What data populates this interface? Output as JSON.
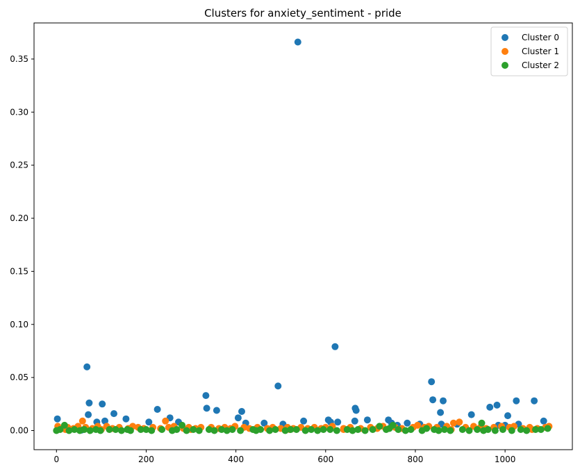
{
  "chart_data": {
    "type": "scatter",
    "title": "Clusters for anxiety_sentiment - pride",
    "xlabel": "",
    "ylabel": "",
    "xlim": [
      -50,
      1150
    ],
    "ylim": [
      -0.018,
      0.384
    ],
    "x_ticks": [
      0,
      200,
      400,
      600,
      800,
      1000
    ],
    "x_tick_labels": [
      "0",
      "200",
      "400",
      "600",
      "800",
      "1000"
    ],
    "y_ticks": [
      0.0,
      0.05,
      0.1,
      0.15,
      0.2,
      0.25,
      0.3,
      0.35
    ],
    "y_tick_labels": [
      "0.00",
      "0.05",
      "0.10",
      "0.15",
      "0.20",
      "0.25",
      "0.30",
      "0.35"
    ],
    "grid": false,
    "legend_position": "top-right",
    "series": [
      {
        "name": "Cluster 0",
        "color": "#1f77b4",
        "points": [
          [
            2,
            0.011
          ],
          [
            56,
            0.0005
          ],
          [
            68,
            0.06
          ],
          [
            71,
            0.015
          ],
          [
            73,
            0.026
          ],
          [
            90,
            0.008
          ],
          [
            102,
            0.025
          ],
          [
            108,
            0.009
          ],
          [
            128,
            0.016
          ],
          [
            155,
            0.011
          ],
          [
            206,
            0.008
          ],
          [
            225,
            0.02
          ],
          [
            253,
            0.012
          ],
          [
            272,
            0.008
          ],
          [
            333,
            0.033
          ],
          [
            335,
            0.021
          ],
          [
            357,
            0.019
          ],
          [
            405,
            0.012
          ],
          [
            413,
            0.018
          ],
          [
            422,
            0.007
          ],
          [
            463,
            0.007
          ],
          [
            494,
            0.042
          ],
          [
            505,
            0.006
          ],
          [
            538,
            0.366
          ],
          [
            551,
            0.009
          ],
          [
            606,
            0.01
          ],
          [
            611,
            0.008
          ],
          [
            621,
            0.079
          ],
          [
            627,
            0.008
          ],
          [
            666,
            0.021
          ],
          [
            668,
            0.019
          ],
          [
            665,
            0.009
          ],
          [
            693,
            0.01
          ],
          [
            740,
            0.01
          ],
          [
            747,
            0.007
          ],
          [
            782,
            0.007
          ],
          [
            810,
            0.006
          ],
          [
            836,
            0.046
          ],
          [
            839,
            0.029
          ],
          [
            856,
            0.017
          ],
          [
            858,
            0.006
          ],
          [
            862,
            0.028
          ],
          [
            893,
            0.006
          ],
          [
            925,
            0.015
          ],
          [
            966,
            0.022
          ],
          [
            982,
            0.024
          ],
          [
            985,
            0.005
          ],
          [
            1006,
            0.014
          ],
          [
            1025,
            0.028
          ],
          [
            1030,
            0.006
          ],
          [
            1065,
            0.028
          ],
          [
            1086,
            0.009
          ],
          [
            1000,
            0.005
          ],
          [
            760,
            0.005
          ]
        ]
      },
      {
        "name": "Cluster 1",
        "color": "#ff7f0e",
        "points": [
          [
            3,
            0.004
          ],
          [
            12,
            0.002
          ],
          [
            25,
            0.003
          ],
          [
            38,
            0.002
          ],
          [
            48,
            0.004
          ],
          [
            58,
            0.009
          ],
          [
            65,
            0.003
          ],
          [
            80,
            0.002
          ],
          [
            92,
            0.004
          ],
          [
            112,
            0.004
          ],
          [
            125,
            0.002
          ],
          [
            140,
            0.003
          ],
          [
            160,
            0.002
          ],
          [
            170,
            0.004
          ],
          [
            182,
            0.003
          ],
          [
            195,
            0.002
          ],
          [
            215,
            0.003
          ],
          [
            232,
            0.002
          ],
          [
            243,
            0.009
          ],
          [
            250,
            0.003
          ],
          [
            262,
            0.004
          ],
          [
            283,
            0.002
          ],
          [
            295,
            0.003
          ],
          [
            310,
            0.002
          ],
          [
            322,
            0.003
          ],
          [
            345,
            0.003
          ],
          [
            362,
            0.002
          ],
          [
            375,
            0.003
          ],
          [
            388,
            0.002
          ],
          [
            398,
            0.004
          ],
          [
            418,
            0.003
          ],
          [
            430,
            0.002
          ],
          [
            448,
            0.003
          ],
          [
            470,
            0.002
          ],
          [
            482,
            0.003
          ],
          [
            500,
            0.002
          ],
          [
            515,
            0.003
          ],
          [
            528,
            0.002
          ],
          [
            545,
            0.003
          ],
          [
            560,
            0.002
          ],
          [
            575,
            0.003
          ],
          [
            590,
            0.002
          ],
          [
            600,
            0.003
          ],
          [
            615,
            0.004
          ],
          [
            640,
            0.002
          ],
          [
            655,
            0.003
          ],
          [
            678,
            0.002
          ],
          [
            700,
            0.003
          ],
          [
            715,
            0.002
          ],
          [
            728,
            0.004
          ],
          [
            755,
            0.003
          ],
          [
            770,
            0.002
          ],
          [
            795,
            0.003
          ],
          [
            805,
            0.005
          ],
          [
            820,
            0.003
          ],
          [
            830,
            0.004
          ],
          [
            848,
            0.003
          ],
          [
            870,
            0.004
          ],
          [
            885,
            0.007
          ],
          [
            898,
            0.008
          ],
          [
            912,
            0.003
          ],
          [
            930,
            0.004
          ],
          [
            945,
            0.003
          ],
          [
            958,
            0.002
          ],
          [
            975,
            0.003
          ],
          [
            992,
            0.004
          ],
          [
            1010,
            0.003
          ],
          [
            1020,
            0.004
          ],
          [
            1040,
            0.002
          ],
          [
            1055,
            0.003
          ],
          [
            1072,
            0.002
          ],
          [
            1090,
            0.003
          ],
          [
            1098,
            0.004
          ],
          [
            20,
            0.001
          ],
          [
            100,
            0.001
          ],
          [
            300,
            0.001
          ],
          [
            520,
            0.001
          ],
          [
            640,
            0.001
          ],
          [
            880,
            0.001
          ],
          [
            1060,
            0.001
          ]
        ]
      },
      {
        "name": "Cluster 2",
        "color": "#2ca02c",
        "points": [
          [
            0,
            0.0
          ],
          [
            8,
            0.001
          ],
          [
            18,
            0.005
          ],
          [
            28,
            0.0
          ],
          [
            40,
            0.001
          ],
          [
            52,
            0.0
          ],
          [
            62,
            0.001
          ],
          [
            75,
            0.0
          ],
          [
            88,
            0.001
          ],
          [
            98,
            0.0
          ],
          [
            118,
            0.001
          ],
          [
            132,
            0.001
          ],
          [
            145,
            0.0
          ],
          [
            158,
            0.001
          ],
          [
            165,
            0.0
          ],
          [
            188,
            0.001
          ],
          [
            200,
            0.001
          ],
          [
            212,
            0.0
          ],
          [
            235,
            0.001
          ],
          [
            258,
            0.0
          ],
          [
            268,
            0.001
          ],
          [
            280,
            0.005
          ],
          [
            290,
            0.0
          ],
          [
            305,
            0.001
          ],
          [
            318,
            0.0
          ],
          [
            340,
            0.001
          ],
          [
            352,
            0.0
          ],
          [
            368,
            0.001
          ],
          [
            380,
            0.0
          ],
          [
            392,
            0.001
          ],
          [
            410,
            0.0
          ],
          [
            438,
            0.001
          ],
          [
            445,
            0.0
          ],
          [
            455,
            0.001
          ],
          [
            475,
            0.0
          ],
          [
            488,
            0.001
          ],
          [
            510,
            0.0
          ],
          [
            522,
            0.001
          ],
          [
            535,
            0.001
          ],
          [
            555,
            0.0
          ],
          [
            568,
            0.001
          ],
          [
            582,
            0.0
          ],
          [
            595,
            0.001
          ],
          [
            610,
            0.001
          ],
          [
            625,
            0.0
          ],
          [
            648,
            0.001
          ],
          [
            660,
            0.0
          ],
          [
            672,
            0.001
          ],
          [
            688,
            0.0
          ],
          [
            705,
            0.001
          ],
          [
            720,
            0.004
          ],
          [
            735,
            0.001
          ],
          [
            742,
            0.002
          ],
          [
            750,
            0.005
          ],
          [
            762,
            0.001
          ],
          [
            778,
            0.0
          ],
          [
            790,
            0.001
          ],
          [
            815,
            0.0
          ],
          [
            825,
            0.002
          ],
          [
            842,
            0.001
          ],
          [
            852,
            0.0
          ],
          [
            865,
            0.001
          ],
          [
            878,
            0.0
          ],
          [
            905,
            0.001
          ],
          [
            920,
            0.0
          ],
          [
            938,
            0.001
          ],
          [
            948,
            0.007
          ],
          [
            952,
            0.0
          ],
          [
            962,
            0.001
          ],
          [
            978,
            0.0
          ],
          [
            995,
            0.001
          ],
          [
            1015,
            0.0
          ],
          [
            1035,
            0.001
          ],
          [
            1048,
            0.0
          ],
          [
            1068,
            0.001
          ],
          [
            1080,
            0.001
          ],
          [
            1095,
            0.002
          ]
        ]
      }
    ]
  }
}
